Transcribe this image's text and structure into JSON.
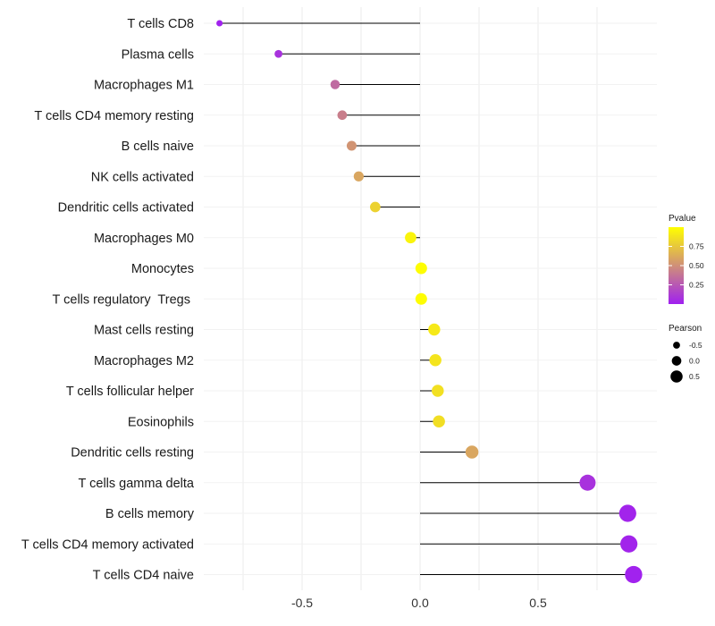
{
  "chart_data": {
    "type": "lollipop",
    "title": "",
    "xlabel": "",
    "ylabel": "",
    "xlim": [
      -0.94,
      0.97
    ],
    "xticks": [
      -0.5,
      0.0,
      0.5
    ],
    "xtick_labels": [
      "-0.5",
      "0.0",
      "0.5"
    ],
    "grid": true,
    "categories": [
      "T cells CD8",
      "Plasma cells",
      "Macrophages M1",
      "T cells CD4 memory resting",
      "B cells naive",
      "NK cells activated",
      "Dendritic cells activated",
      "Macrophages M0",
      "Monocytes",
      "T cells regulatory  Tregs ",
      "Mast cells resting",
      "Macrophages M2",
      "T cells follicular helper",
      "Eosinophils",
      "Dendritic cells resting",
      "T cells gamma delta",
      "B cells memory",
      "T cells CD4 memory activated",
      "T cells CD4 naive"
    ],
    "pearson": [
      -0.85,
      -0.6,
      -0.36,
      -0.33,
      -0.29,
      -0.26,
      -0.19,
      -0.04,
      0.005,
      0.005,
      0.06,
      0.065,
      0.075,
      0.08,
      0.22,
      0.71,
      0.88,
      0.885,
      0.905
    ],
    "pvalue": [
      0.01,
      0.08,
      0.33,
      0.42,
      0.52,
      0.6,
      0.8,
      0.95,
      0.99,
      0.99,
      0.9,
      0.88,
      0.86,
      0.85,
      0.6,
      0.08,
      0.02,
      0.02,
      0.01
    ],
    "legend_color": {
      "title": "Pvalue",
      "ticks": [
        0.25,
        0.5,
        0.75
      ],
      "tick_labels": [
        "0.25",
        "0.50",
        "0.75"
      ],
      "range": [
        0.0,
        1.0
      ],
      "low_color": "#a020f0",
      "high_color": "#ffff00"
    },
    "legend_size": {
      "title": "Pearson",
      "values": [
        -0.5,
        0.0,
        0.5
      ],
      "labels": [
        "-0.5",
        "0.0",
        "0.5"
      ]
    },
    "legend_position": "right"
  }
}
